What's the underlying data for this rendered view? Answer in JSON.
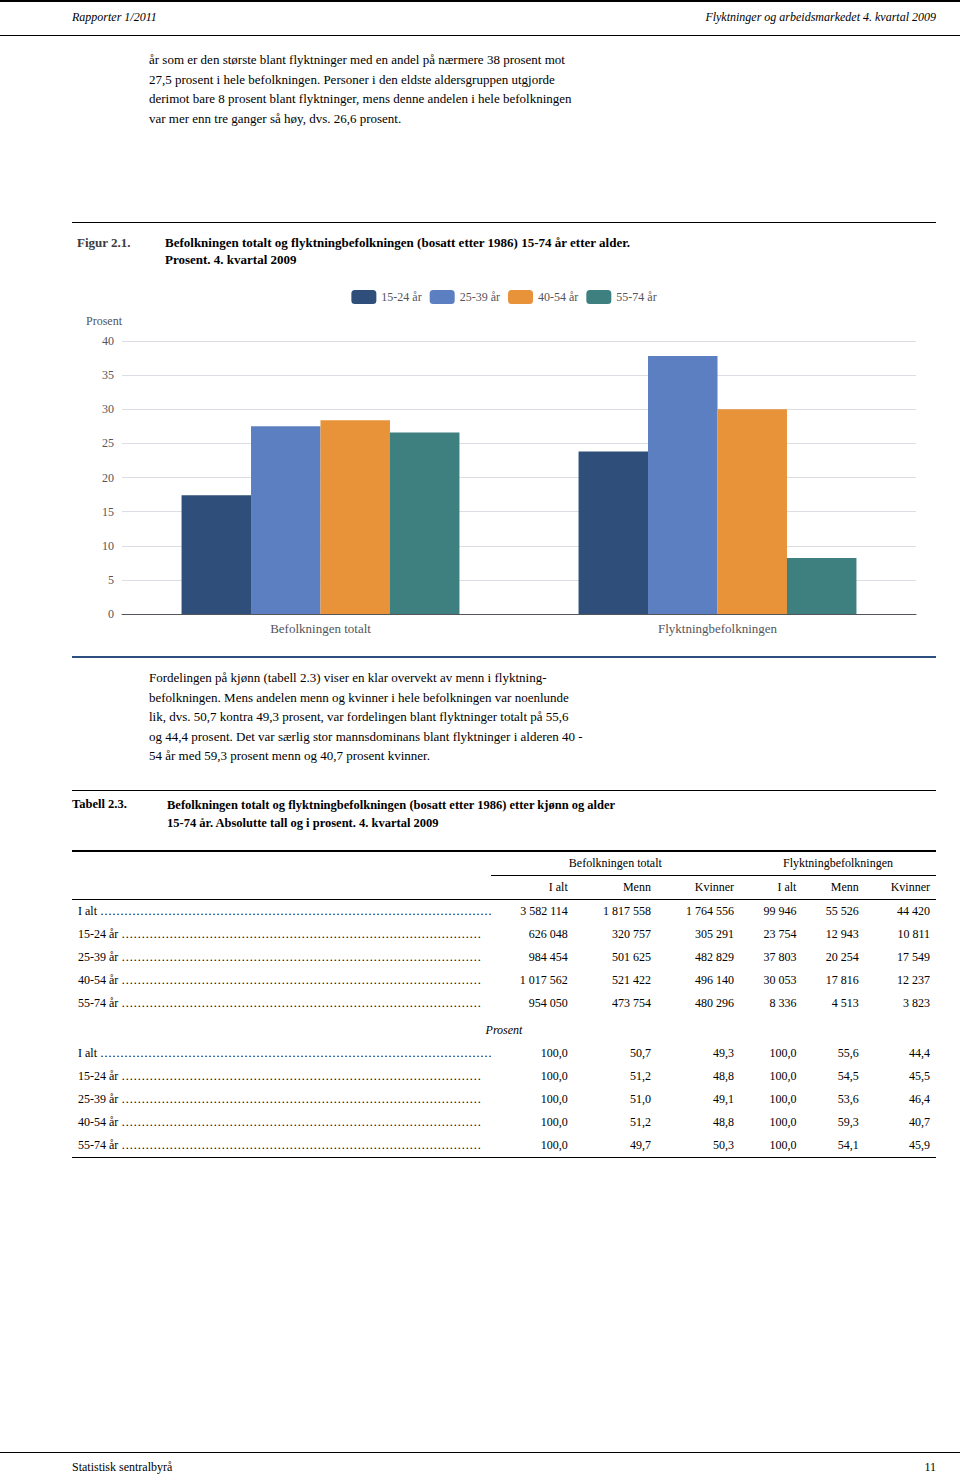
{
  "header_left": "Rapporter 1/2011",
  "header_right": "Flyktninger og arbeidsmarkedet 4. kvartal 2009",
  "intro_text": "år som er den største blant flyktninger med en andel på nærmere 38 prosent mot\n27,5 prosent i hele befolkningen. Personer i den eldste aldersgruppen utgjorde\nderimot bare 8 prosent blant flyktninger, mens denne andelen i hele befolkningen\nvar mer enn tre ganger så høy, dvs. 26,6 prosent.",
  "chart_data": {
    "type": "bar",
    "annotations": [
      "Figur 2.1."
    ],
    "title": "Befolkningen totalt og flyktningbefolkningen (bosatt etter 1986) 15-74 år etter alder.",
    "subtitle": "Prosent. 4. kvartal 2009",
    "ylabel": "Prosent",
    "categories": [
      "Befolkningen totalt",
      "Flyktningbefolkningen"
    ],
    "series": [
      {
        "name": "15-24 år",
        "color": "#2F4F7A",
        "values": [
          17.4,
          23.8
        ]
      },
      {
        "name": "25-39 år",
        "color": "#5B7FC0",
        "values": [
          27.5,
          37.8
        ]
      },
      {
        "name": "40-54 år",
        "color": "#E8923A",
        "values": [
          28.4,
          30.0
        ]
      },
      {
        "name": "55-74 år",
        "color": "#3E8080",
        "values": [
          26.6,
          8.2
        ]
      }
    ],
    "ylim": [
      0,
      40
    ],
    "yticks": [
      0,
      5,
      10,
      15,
      20,
      25,
      30,
      35,
      40
    ],
    "grid": true,
    "legend": "top"
  },
  "mid_text": "Fordelingen på kjønn (tabell 2.3) viser en klar overvekt av menn i flyktning-\nbefolkningen. Mens andelen menn og kvinner i hele befolkningen var noenlunde\nlik, dvs. 50,7 kontra 49,3 prosent, var fordelingen blant flyktninger totalt på 55,6\nog 44,4 prosent. Det var særlig stor mannsdominans blant flyktninger i alderen 40 -\n54 år med 59,3 prosent menn og 40,7 prosent kvinner.",
  "table": {
    "label": "Tabell 2.3.",
    "title": "Befolkningen totalt og flyktningbefolkningen (bosatt etter 1986) etter kjønn og alder\n15-74 år. Absolutte tall og i prosent. 4. kvartal 2009",
    "column_groups": [
      "Befolkningen totalt",
      "Flyktningbefolkningen"
    ],
    "columns": [
      "I alt",
      "Menn",
      "Kvinner",
      "I alt",
      "Menn",
      "Kvinner"
    ],
    "rows": [
      [
        "I alt ………………………………………………………………………………………………",
        "3 582 114",
        "1 817 558",
        "1 764 556",
        "99 946",
        "55 526",
        "44 420"
      ],
      [
        "15-24 år ………………………………………………………………………………",
        "626 048",
        "320 757",
        "305 291",
        "23 754",
        "12 943",
        "10 811"
      ],
      [
        "25-39 år ………………………………………………………………………………",
        "984 454",
        "501 625",
        "482 829",
        "37 803",
        "20 254",
        "17 549"
      ],
      [
        "40-54 år ………………………………………………………………………………",
        "1 017 562",
        "521 422",
        "496 140",
        "30 053",
        "17 816",
        "12 237"
      ],
      [
        "55-74 år ………………………………………………………………………………",
        "954 050",
        "473 754",
        "480 296",
        "8 336",
        "4 513",
        "3 823"
      ]
    ],
    "section_label": "Prosent",
    "section_rows": [
      [
        "I alt ………………………………………………………………………………………………",
        "100,0",
        "50,7",
        "49,3",
        "100,0",
        "55,6",
        "44,4"
      ],
      [
        "15-24 år ………………………………………………………………………………",
        "100,0",
        "51,2",
        "48,8",
        "100,0",
        "54,5",
        "45,5"
      ],
      [
        "25-39 år ………………………………………………………………………………",
        "100,0",
        "51,0",
        "49,1",
        "100,0",
        "53,6",
        "46,4"
      ],
      [
        "40-54 år ………………………………………………………………………………",
        "100,0",
        "51,2",
        "48,8",
        "100,0",
        "59,3",
        "40,7"
      ],
      [
        "55-74 år ………………………………………………………………………………",
        "100,0",
        "49,7",
        "50,3",
        "100,0",
        "54,1",
        "45,9"
      ]
    ]
  },
  "footer_left": "Statistisk sentralbyrå",
  "footer_right": "11"
}
